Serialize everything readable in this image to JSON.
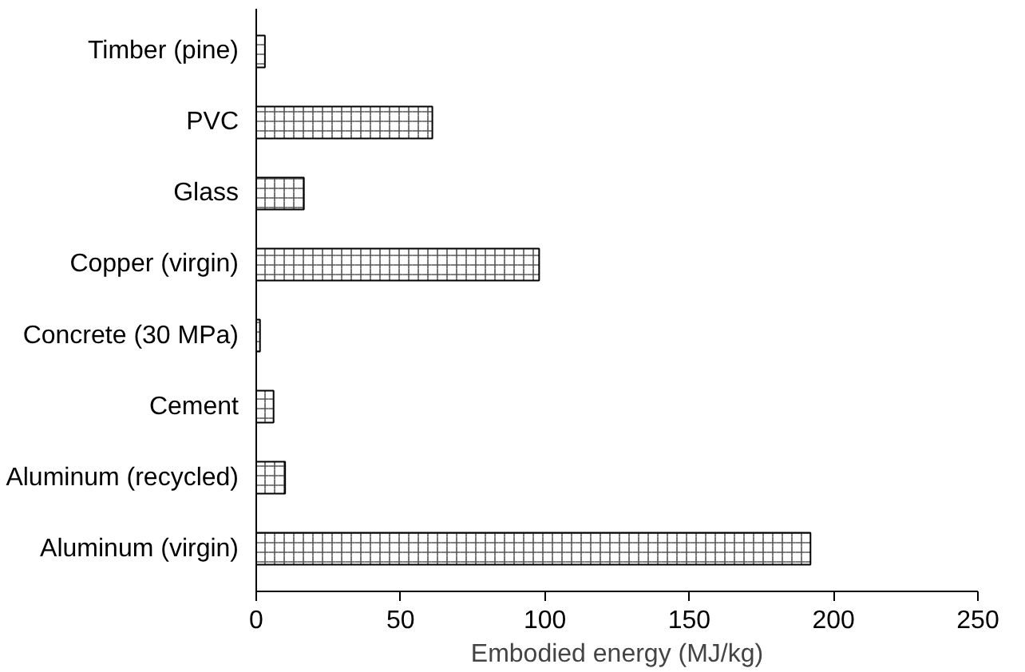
{
  "chart_data": {
    "type": "bar",
    "orientation": "horizontal",
    "xlabel": "Embodied energy (MJ/kg)",
    "categories": [
      "Timber (pine)",
      "PVC",
      "Glass",
      "Copper (virgin)",
      "Concrete (30 MPa)",
      "Cement",
      "Aluminum (recycled)",
      "Aluminum (virgin)"
    ],
    "values": [
      3,
      61,
      16.5,
      98,
      1.3,
      6,
      10,
      192
    ],
    "color": "#ffffff",
    "xlim": [
      0,
      250
    ],
    "xticks": [
      0,
      50,
      100,
      150,
      200,
      250
    ],
    "grid": false
  }
}
